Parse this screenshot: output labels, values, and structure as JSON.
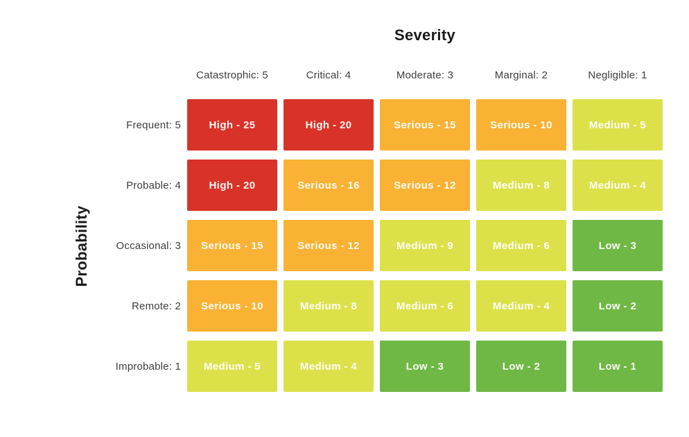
{
  "title": "Severity",
  "y_axis_label": "Probability",
  "chart_data": {
    "type": "heatmap",
    "title": "Severity",
    "xlabel": "Severity",
    "ylabel": "Probability",
    "legend": "none",
    "grid": false,
    "x_categories": [
      "Catastrophic: 5",
      "Critical: 4",
      "Moderate: 3",
      "Marginal: 2",
      "Negligible: 1"
    ],
    "y_categories": [
      "Frequent: 5",
      "Probable: 4",
      "Occasional: 3",
      "Remote: 2",
      "Improbable: 1"
    ],
    "values": [
      [
        25,
        20,
        15,
        10,
        5
      ],
      [
        20,
        16,
        12,
        8,
        4
      ],
      [
        15,
        12,
        9,
        6,
        3
      ],
      [
        10,
        8,
        6,
        4,
        2
      ],
      [
        5,
        4,
        3,
        2,
        1
      ]
    ],
    "cell_labels": [
      [
        "High - 25",
        "High - 20",
        "Serious - 15",
        "Serious - 10",
        "Medium - 5"
      ],
      [
        "High - 20",
        "Serious - 16",
        "Serious - 12",
        "Medium - 8",
        "Medium - 4"
      ],
      [
        "Serious - 15",
        "Serious - 12",
        "Medium - 9",
        "Medium - 6",
        "Low - 3"
      ],
      [
        "Serious - 10",
        "Medium - 8",
        "Medium - 6",
        "Medium - 4",
        "Low - 2"
      ],
      [
        "Medium - 5",
        "Medium - 4",
        "Low - 3",
        "Low - 2",
        "Low - 1"
      ]
    ],
    "cell_levels": [
      [
        "High",
        "High",
        "Serious",
        "Serious",
        "Medium"
      ],
      [
        "High",
        "Serious",
        "Serious",
        "Medium",
        "Medium"
      ],
      [
        "Serious",
        "Serious",
        "Medium",
        "Medium",
        "Low"
      ],
      [
        "Serious",
        "Medium",
        "Medium",
        "Medium",
        "Low"
      ],
      [
        "Medium",
        "Medium",
        "Low",
        "Low",
        "Low"
      ]
    ],
    "level_colors": {
      "High": "#d93228",
      "Serious": "#f9b233",
      "Medium": "#dce14a",
      "Low": "#6fb845"
    }
  }
}
